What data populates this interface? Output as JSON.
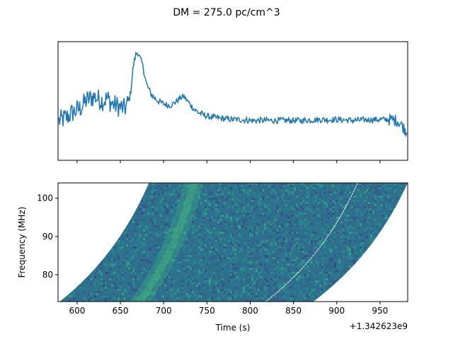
{
  "figure": {
    "suptitle": "DM = 275.0 pc/cm^3"
  },
  "chart_data": [
    {
      "type": "line",
      "panel": "top",
      "title": "",
      "xlabel": "",
      "ylabel": "",
      "xlim": [
        578,
        982
      ],
      "ylim": [
        -0.22,
        1.12
      ],
      "x_tick_labels_visible": false,
      "y_ticks_visible": false,
      "x_ticks": [
        600,
        650,
        700,
        750,
        800,
        850,
        900,
        950
      ],
      "color": "#1f77b4",
      "series": [
        {
          "x": [
            578,
            585,
            590,
            595,
            600,
            605,
            610,
            615,
            620,
            625,
            630,
            635,
            640,
            645,
            650,
            655,
            660,
            662,
            665,
            668,
            670,
            672,
            675,
            678,
            680,
            683,
            686,
            690,
            695,
            700,
            705,
            710,
            715,
            720,
            723,
            726,
            730,
            735,
            740,
            745,
            750,
            760,
            770,
            780,
            790,
            800,
            820,
            840,
            860,
            880,
            900,
            920,
            940,
            960,
            970,
            975,
            978,
            981
          ],
          "values": [
            0.22,
            0.25,
            0.28,
            0.32,
            0.35,
            0.38,
            0.45,
            0.48,
            0.5,
            0.47,
            0.45,
            0.48,
            0.42,
            0.4,
            0.38,
            0.36,
            0.45,
            0.55,
            0.85,
            0.98,
            1.0,
            0.95,
            0.88,
            0.75,
            0.65,
            0.58,
            0.52,
            0.48,
            0.44,
            0.42,
            0.4,
            0.41,
            0.45,
            0.49,
            0.5,
            0.47,
            0.42,
            0.36,
            0.32,
            0.3,
            0.28,
            0.26,
            0.25,
            0.24,
            0.24,
            0.23,
            0.23,
            0.23,
            0.23,
            0.24,
            0.24,
            0.23,
            0.24,
            0.24,
            0.23,
            0.18,
            0.14,
            0.1
          ]
        }
      ]
    },
    {
      "type": "heatmap",
      "panel": "bottom",
      "title": "",
      "xlabel": "Time (s)",
      "ylabel": "Frequency (MHz)",
      "xlim": [
        578,
        982
      ],
      "ylim": [
        73,
        104
      ],
      "x_ticks": [
        600,
        650,
        700,
        750,
        800,
        850,
        900,
        950
      ],
      "x_tick_labels": [
        "600",
        "650",
        "700",
        "750",
        "800",
        "850",
        "900",
        "950"
      ],
      "y_ticks": [
        80,
        90,
        100
      ],
      "y_tick_labels": [
        "80",
        "90",
        "100"
      ],
      "x_offset_label": "+1.342623e9",
      "colormap": "viridis",
      "data_region": {
        "left_edge_time_at_f_min": 580,
        "left_edge_time_at_f_max": 683,
        "right_edge_time_at_f_min": 873,
        "right_edge_time_at_f_max": 982
      },
      "pulse_track": {
        "time_at_f_min": 672,
        "time_at_f_max": 735
      },
      "masked_line": {
        "time_at_f_min": 818,
        "time_at_f_max": 924
      }
    }
  ]
}
